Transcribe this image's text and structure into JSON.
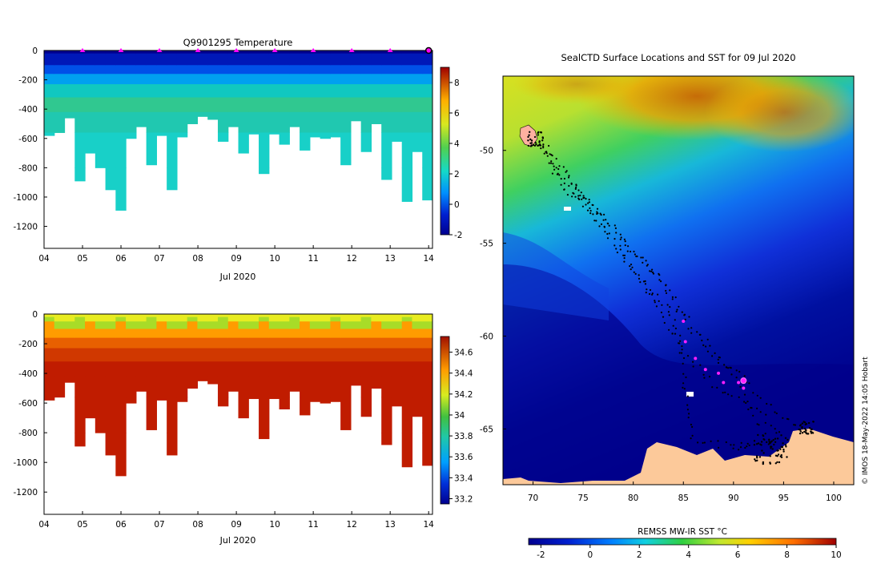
{
  "chart_data": [
    {
      "type": "heatmap",
      "title": "Q9901295  Temperature",
      "variable": "temperature",
      "xlabel": "Jul 2020",
      "x_ticks": [
        "04",
        "05",
        "06",
        "07",
        "08",
        "09",
        "10",
        "11",
        "12",
        "13",
        "14"
      ],
      "x_domain_days": [
        4,
        14.1
      ],
      "y_ticks": [
        0,
        -200,
        -400,
        -600,
        -800,
        -1000,
        -1200
      ],
      "ylim": [
        -1350,
        0
      ],
      "colorbar": {
        "ticks": [
          -2,
          0,
          2,
          4,
          6,
          8
        ],
        "range": [
          -2,
          9
        ]
      },
      "surface_markers_days": [
        5,
        6,
        7,
        8,
        9,
        10,
        11,
        12,
        13
      ],
      "profile_depths": [
        580,
        560,
        460,
        890,
        700,
        800,
        950,
        1090,
        600,
        520,
        780,
        580,
        950,
        590,
        500,
        450,
        470,
        620,
        520,
        700,
        570,
        840,
        570,
        640,
        520,
        680,
        590,
        600,
        590,
        780,
        480,
        690,
        500,
        880,
        620,
        1030,
        690,
        1020
      ]
    },
    {
      "type": "heatmap",
      "title": "",
      "variable": "salinity",
      "xlabel": "Jul 2020",
      "x_ticks": [
        "04",
        "05",
        "06",
        "07",
        "08",
        "09",
        "10",
        "11",
        "12",
        "13",
        "14"
      ],
      "x_domain_days": [
        4,
        14.1
      ],
      "y_ticks": [
        0,
        -200,
        -400,
        -600,
        -800,
        -1000,
        -1200
      ],
      "ylim": [
        -1350,
        0
      ],
      "colorbar": {
        "ticks": [
          33.2,
          33.4,
          33.6,
          33.8,
          34,
          34.2,
          34.4,
          34.6
        ],
        "range": [
          33.15,
          34.75
        ]
      }
    },
    {
      "type": "heatmap",
      "title": "SealCTD Surface Locations and SST for 09 Jul 2020",
      "x_ticks": [
        70,
        75,
        80,
        85,
        90,
        95,
        100
      ],
      "y_ticks": [
        -50,
        -55,
        -60,
        -65
      ],
      "xlim": [
        67,
        102
      ],
      "ylim": [
        -68,
        -46
      ],
      "colorbar": {
        "label": "REMSS MW-IR SST °C",
        "ticks": [
          -2,
          0,
          2,
          4,
          6,
          8,
          10
        ],
        "range": [
          -2.5,
          10
        ]
      },
      "recent_positions": [
        [
          85.0,
          -59.2
        ],
        [
          85.2,
          -60.3
        ],
        [
          86.2,
          -61.2
        ],
        [
          87.2,
          -61.8
        ],
        [
          88.5,
          -62.0
        ],
        [
          89.0,
          -62.5
        ],
        [
          90.5,
          -62.5
        ],
        [
          91.0,
          -62.8
        ],
        [
          91.0,
          -62.4
        ]
      ],
      "credit": "© IMOS 18-May-2022 14:05 Hobart"
    }
  ]
}
